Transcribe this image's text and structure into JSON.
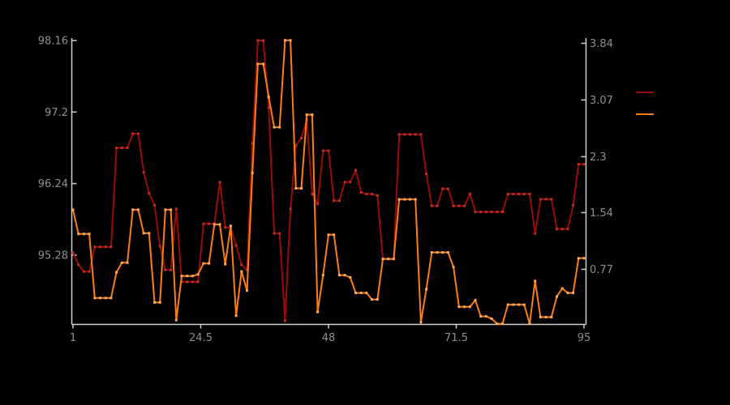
{
  "chart_data": {
    "type": "line",
    "title": "",
    "background_color": "#000000",
    "axis_line_color": "#cfcfcf",
    "tick_label_color": "#8f8f8f",
    "grid": false,
    "x_axis": {
      "tick_labels": [
        "1",
        "24.5",
        "48",
        "71.5",
        "95"
      ],
      "tick_values": [
        1,
        24.5,
        48,
        71.5,
        95
      ],
      "range": [
        1,
        95
      ]
    },
    "left_axis": {
      "tick_labels": [
        "98.16",
        "97.2",
        "96.24",
        "95.28"
      ],
      "tick_values": [
        98.16,
        97.2,
        96.24,
        95.28
      ],
      "top_value": 98.16,
      "bottom_value": 94.355
    },
    "right_axis": {
      "tick_labels": [
        "3.84",
        "3.07",
        "2.3",
        "1.54",
        "0.77"
      ],
      "tick_values": [
        3.84,
        3.07,
        2.3,
        1.54,
        0.77
      ],
      "top_value": 3.878,
      "bottom_value": 0.027
    },
    "x_start": 1,
    "x_step": 1,
    "series": [
      {
        "name": "series-1-dark-red",
        "axis": "left",
        "color": "#990b06",
        "marker_color": "#b93125",
        "legend_label": "",
        "values": [
          95.31,
          95.15,
          95.06,
          95.06,
          95.39,
          95.39,
          95.39,
          95.39,
          96.72,
          96.72,
          96.72,
          96.91,
          96.91,
          96.39,
          96.11,
          95.95,
          95.4,
          95.08,
          95.08,
          95.9,
          94.92,
          94.92,
          94.92,
          94.92,
          95.7,
          95.7,
          95.7,
          96.26,
          95.65,
          95.65,
          95.41,
          95.15,
          95.08,
          96.78,
          98.16,
          98.16,
          97.26,
          95.57,
          95.57,
          94.4,
          95.9,
          96.75,
          96.85,
          97.1,
          96.1,
          95.97,
          96.68,
          96.68,
          96.01,
          96.01,
          96.26,
          96.26,
          96.42,
          96.12,
          96.1,
          96.1,
          96.08,
          95.23,
          95.23,
          95.23,
          96.9,
          96.9,
          96.9,
          96.9,
          96.9,
          96.37,
          95.94,
          95.94,
          96.17,
          96.17,
          95.94,
          95.94,
          95.94,
          96.1,
          95.86,
          95.86,
          95.86,
          95.86,
          95.86,
          95.86,
          96.1,
          96.1,
          96.1,
          96.1,
          96.1,
          95.57,
          96.03,
          96.03,
          96.03,
          95.63,
          95.63,
          95.63,
          95.95,
          96.5,
          96.5
        ]
      },
      {
        "name": "series-2-orange",
        "axis": "right",
        "color": "#fb7e14",
        "marker_color": "#ffa85e",
        "legend_label": "",
        "values": [
          1.58,
          1.25,
          1.25,
          1.25,
          0.38,
          0.38,
          0.38,
          0.38,
          0.73,
          0.86,
          0.86,
          1.58,
          1.58,
          1.26,
          1.26,
          0.32,
          0.32,
          1.58,
          1.58,
          0.08,
          0.68,
          0.68,
          0.68,
          0.7,
          0.85,
          0.85,
          1.38,
          1.38,
          0.84,
          1.36,
          0.14,
          0.74,
          0.48,
          2.08,
          3.56,
          3.56,
          3.11,
          2.7,
          2.7,
          3.88,
          3.88,
          1.87,
          1.87,
          2.87,
          2.87,
          0.19,
          0.69,
          1.24,
          1.24,
          0.69,
          0.69,
          0.66,
          0.45,
          0.45,
          0.45,
          0.36,
          0.36,
          0.91,
          0.91,
          0.91,
          1.72,
          1.72,
          1.72,
          1.72,
          0.05,
          0.5,
          1.0,
          1.0,
          1.0,
          1.0,
          0.8,
          0.26,
          0.26,
          0.26,
          0.35,
          0.13,
          0.13,
          0.1,
          0.03,
          0.03,
          0.29,
          0.29,
          0.29,
          0.29,
          0.03,
          0.61,
          0.12,
          0.12,
          0.12,
          0.4,
          0.51,
          0.45,
          0.45,
          0.92,
          0.92
        ]
      }
    ],
    "legend": {
      "position": "right",
      "entries": [
        {
          "label": "",
          "color": "#990b06"
        },
        {
          "label": "",
          "color": "#fb7e14"
        }
      ]
    }
  }
}
